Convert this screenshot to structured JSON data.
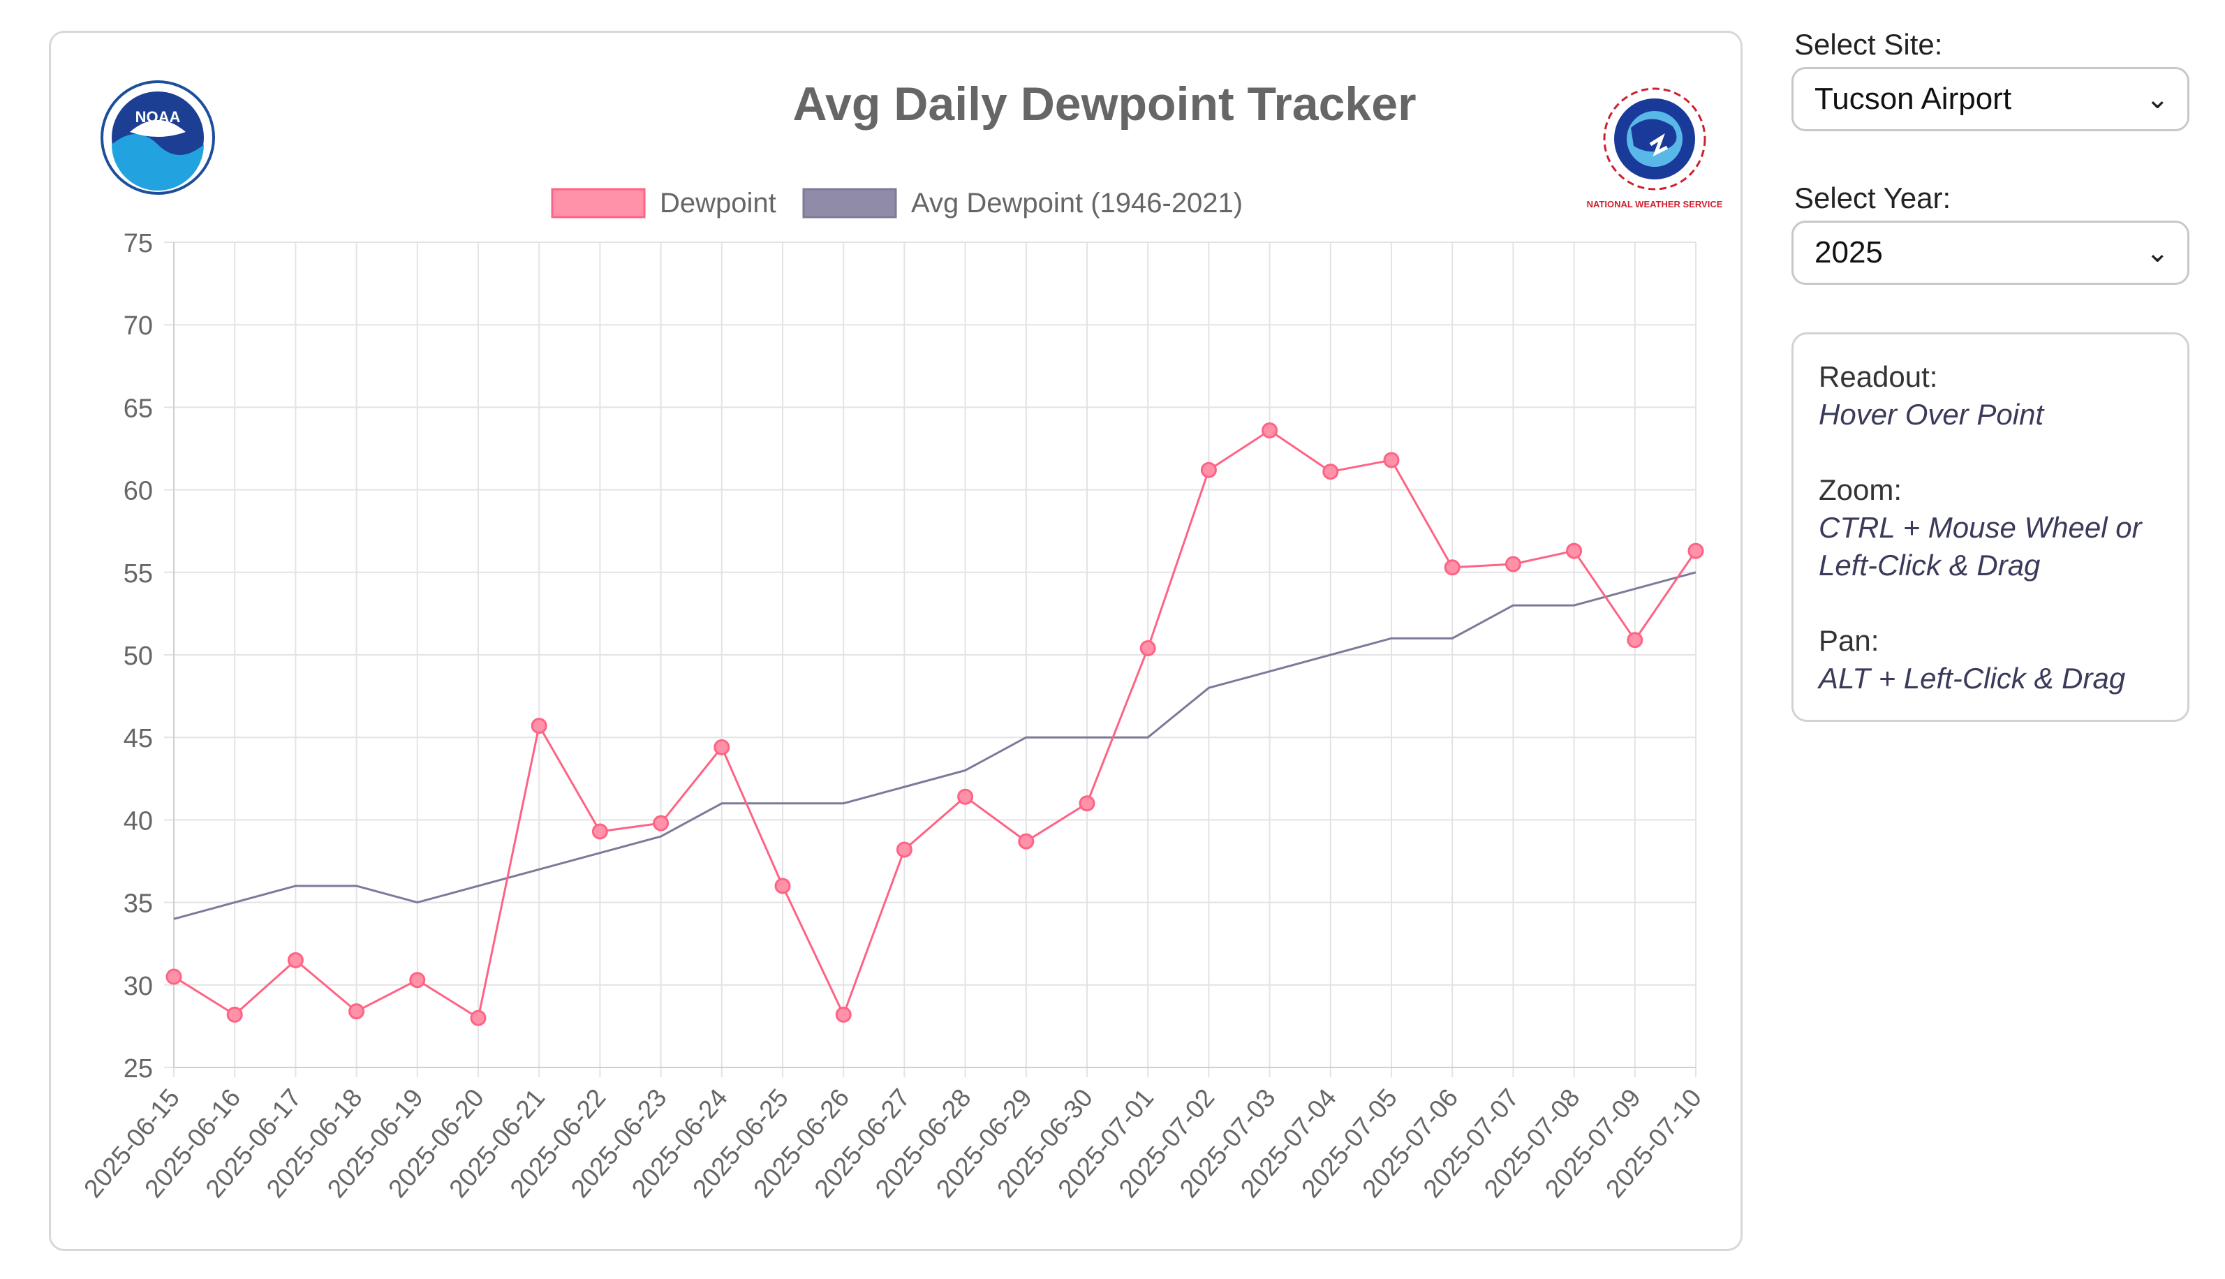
{
  "title": "Avg Daily Dewpoint Tracker",
  "logos": {
    "left": "NOAA",
    "right": "NATIONAL WEATHER SERVICE"
  },
  "controls": {
    "site_label": "Select Site:",
    "site_value": "Tucson Airport",
    "year_label": "Select Year:",
    "year_value": "2025"
  },
  "info": {
    "readout_label": "Readout:",
    "readout_value": "Hover Over Point",
    "zoom_label": "Zoom:",
    "zoom_value_line1": "CTRL + Mouse Wheel or",
    "zoom_value_line2": "Left-Click & Drag",
    "pan_label": "Pan:",
    "pan_value": "ALT + Left-Click & Drag"
  },
  "colors": {
    "dewpoint": "#ff6384",
    "dewpoint_fill": "#ff91a8",
    "avg": "#7d7a99",
    "avg_fill": "#908ca8",
    "grid": "#e3e3e3",
    "text": "#666666"
  },
  "chart_data": {
    "type": "line",
    "title": "Avg Daily Dewpoint Tracker",
    "categories": [
      "2025-06-15",
      "2025-06-16",
      "2025-06-17",
      "2025-06-18",
      "2025-06-19",
      "2025-06-20",
      "2025-06-21",
      "2025-06-22",
      "2025-06-23",
      "2025-06-24",
      "2025-06-25",
      "2025-06-26",
      "2025-06-27",
      "2025-06-28",
      "2025-06-29",
      "2025-06-30",
      "2025-07-01",
      "2025-07-02",
      "2025-07-03",
      "2025-07-04",
      "2025-07-05",
      "2025-07-06",
      "2025-07-07",
      "2025-07-08",
      "2025-07-09",
      "2025-07-10"
    ],
    "series": [
      {
        "name": "Dewpoint",
        "values": [
          30.5,
          28.2,
          31.5,
          28.4,
          30.3,
          28.0,
          45.7,
          39.3,
          39.8,
          44.4,
          36.0,
          28.2,
          38.2,
          41.4,
          38.7,
          41.0,
          50.4,
          61.2,
          63.6,
          61.1,
          61.8,
          55.3,
          55.5,
          56.3,
          50.9,
          56.3
        ],
        "markers": true
      },
      {
        "name": "Avg Dewpoint (1946-2021)",
        "values": [
          34,
          35,
          36,
          36,
          35,
          36,
          37,
          38,
          39,
          41,
          41,
          41,
          42,
          43,
          45,
          45,
          45,
          48,
          49,
          50,
          51,
          51,
          53,
          53,
          54,
          55
        ],
        "markers": false
      }
    ],
    "ylim": [
      25,
      75
    ],
    "yticks": [
      25,
      30,
      35,
      40,
      45,
      50,
      55,
      60,
      65,
      70,
      75
    ],
    "xlabel": "",
    "ylabel": "",
    "grid": true,
    "legend": "top-center"
  }
}
